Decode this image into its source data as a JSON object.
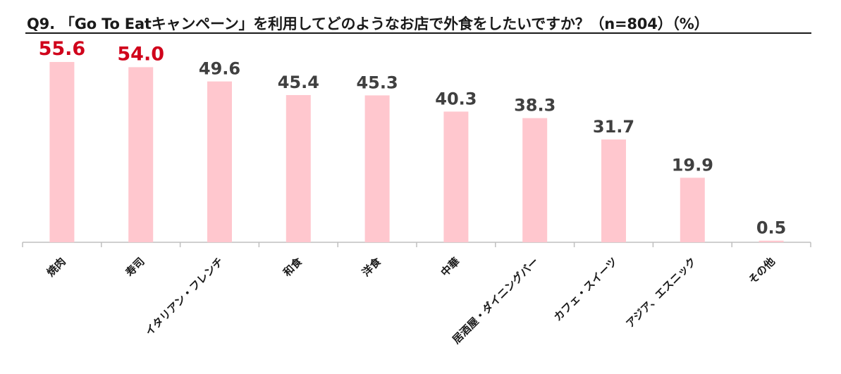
{
  "chart_data": {
    "type": "bar",
    "title": "Q9. 「Go To Eatキャンペーン」を利用してどのようなお店で外食をしたいですか？（n=804）（%）",
    "categories": [
      "焼肉",
      "寿司",
      "イタリアン・フレンチ",
      "和食",
      "洋食",
      "中華",
      "居酒屋・ダイニングバー",
      "カフェ・スイーツ",
      "アジア、エスニック",
      "その他"
    ],
    "values": [
      55.6,
      54.0,
      49.6,
      45.4,
      45.3,
      40.3,
      38.3,
      31.7,
      19.9,
      0.5
    ],
    "value_labels": [
      "55.6",
      "54.0",
      "49.6",
      "45.4",
      "45.3",
      "40.3",
      "38.3",
      "31.7",
      "19.9",
      "0.5"
    ],
    "ylim": [
      0,
      55.6
    ],
    "grid": false,
    "bar_color": "#ffc7ce",
    "highlight_label_color": "#d0021b",
    "label_color": "#404040",
    "highlight_count": 2
  }
}
